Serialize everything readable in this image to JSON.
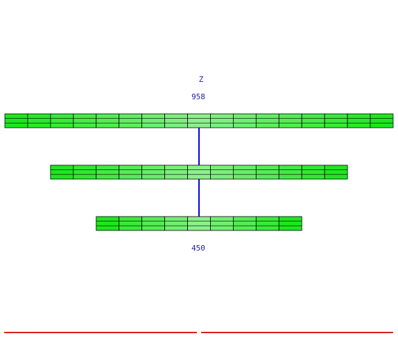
{
  "axis_label": "Z",
  "top_value": "958",
  "bottom_value": "450",
  "colors": {
    "label": "#1c1cb4",
    "connector": "#0000dd",
    "cell_border": "#000000",
    "cell_edge": "#1ee61e",
    "cell_center": "#8cf08c",
    "scrollbar": "#d42020"
  },
  "layers": [
    {
      "name": "layer-top",
      "segments": 17
    },
    {
      "name": "layer-middle",
      "segments": 13
    },
    {
      "name": "layer-bottom",
      "segments": 9
    }
  ]
}
